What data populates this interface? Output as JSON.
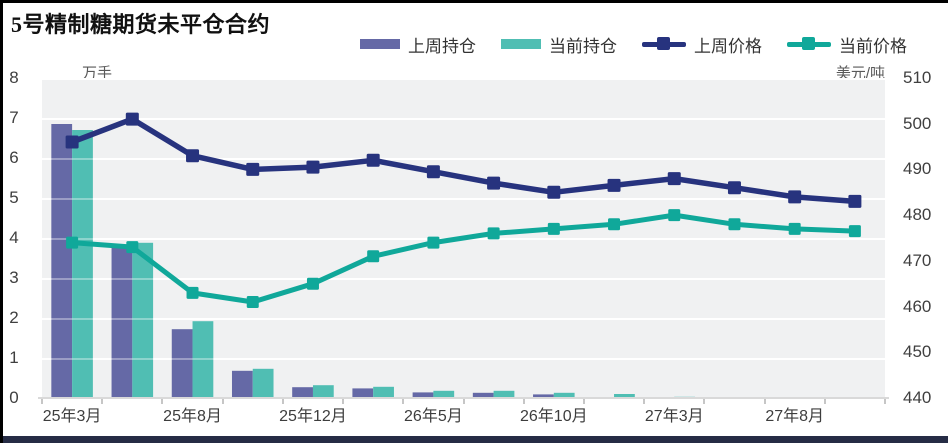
{
  "title": "5号精制糖期货未平仓合约",
  "legend": [
    {
      "label": "上周持仓",
      "type": "bar",
      "color": "#6569A6"
    },
    {
      "label": "当前持仓",
      "type": "bar",
      "color": "#50BEB3"
    },
    {
      "label": "上周价格",
      "type": "line",
      "color": "#27337E"
    },
    {
      "label": "当前价格",
      "type": "line",
      "color": "#10A89A"
    }
  ],
  "colors": {
    "bar_last_week": "#6569A6",
    "bar_current": "#50BEB3",
    "line_last_week": "#27337E",
    "line_current": "#10A89A",
    "plot_background": "#f0f1f2",
    "gridline": "#ffffff",
    "bottom_band": "#262c45"
  },
  "chart_data": {
    "type": "combo-bar-line",
    "title": "5号精制糖期货未平仓合约",
    "left_axis": {
      "unit": "万手",
      "ticks": [
        8,
        7,
        6,
        5,
        4,
        3,
        2,
        1,
        0
      ],
      "range": [
        0,
        8
      ]
    },
    "right_axis": {
      "unit": "美元/吨",
      "ticks": [
        510,
        500,
        490,
        480,
        470,
        460,
        450,
        440
      ],
      "range": [
        440,
        510
      ]
    },
    "num_points": 14,
    "x_labels": [
      "25年3月",
      "25年8月",
      "25年12月",
      "26年5月",
      "26年10月",
      "27年3月",
      "27年8月"
    ],
    "x_label_indices": [
      0,
      2,
      4,
      6,
      8,
      10,
      12
    ],
    "grid": true,
    "legend_position": "top",
    "series": [
      {
        "name": "上周持仓",
        "type": "bar",
        "axis": "left",
        "color": "#6569A6",
        "values": [
          6.85,
          3.76,
          1.72,
          0.68,
          0.27,
          0.24,
          0.14,
          0.13,
          0.09,
          0.02,
          0.02,
          0.01,
          0.01,
          0.01
        ]
      },
      {
        "name": "当前持仓",
        "type": "bar",
        "axis": "left",
        "color": "#50BEB3",
        "values": [
          6.7,
          3.88,
          1.92,
          0.73,
          0.32,
          0.28,
          0.18,
          0.18,
          0.13,
          0.1,
          0.03,
          0.02,
          0.01,
          0.01
        ]
      },
      {
        "name": "上周价格",
        "type": "line",
        "axis": "right",
        "color": "#27337E",
        "values": [
          496,
          501,
          493,
          490,
          490.5,
          492,
          489.5,
          487,
          485,
          486.5,
          488,
          486,
          484,
          483
        ]
      },
      {
        "name": "当前价格",
        "type": "line",
        "axis": "right",
        "color": "#10A89A",
        "values": [
          474,
          473,
          463,
          461,
          465,
          471,
          474,
          476,
          477,
          478,
          480,
          478,
          477,
          476.5
        ]
      }
    ]
  }
}
